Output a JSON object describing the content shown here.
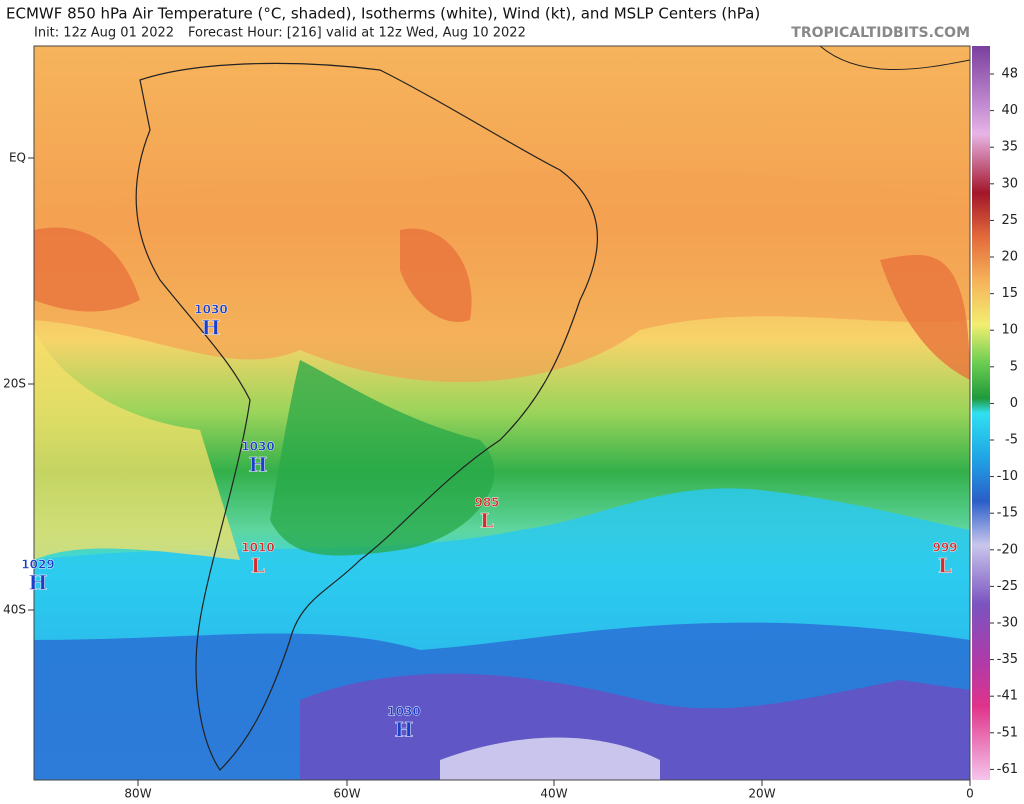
{
  "header": {
    "title": "ECMWF 850 hPa Air Temperature (°C, shaded), Isotherms (white), Wind (kt), and MSLP Centers (hPa)",
    "init": "Init: 12z Aug 01 2022",
    "forecast_hour": "Forecast Hour: [216]",
    "valid": "valid at 12z Wed, Aug 10 2022",
    "watermark": "TROPICALTIDBITS.COM"
  },
  "axes": {
    "lat_labels": [
      "EQ",
      "20S",
      "40S"
    ],
    "lon_labels": [
      "80W",
      "60W",
      "40W",
      "20W",
      "0"
    ]
  },
  "colorbar": {
    "labels": [
      48,
      40,
      35,
      30,
      25,
      20,
      15,
      10,
      5,
      0,
      -5,
      -10,
      -15,
      -20,
      -25,
      -30,
      -35,
      -41,
      -51,
      -61
    ]
  },
  "pressure_centers": [
    {
      "value": "1030",
      "type": "H"
    },
    {
      "value": "1030",
      "type": "H"
    },
    {
      "value": "1029",
      "type": "H"
    },
    {
      "value": "1010",
      "type": "L"
    },
    {
      "value": "985",
      "type": "L"
    },
    {
      "value": "999",
      "type": "L"
    },
    {
      "value": "1030",
      "type": "H"
    }
  ]
}
